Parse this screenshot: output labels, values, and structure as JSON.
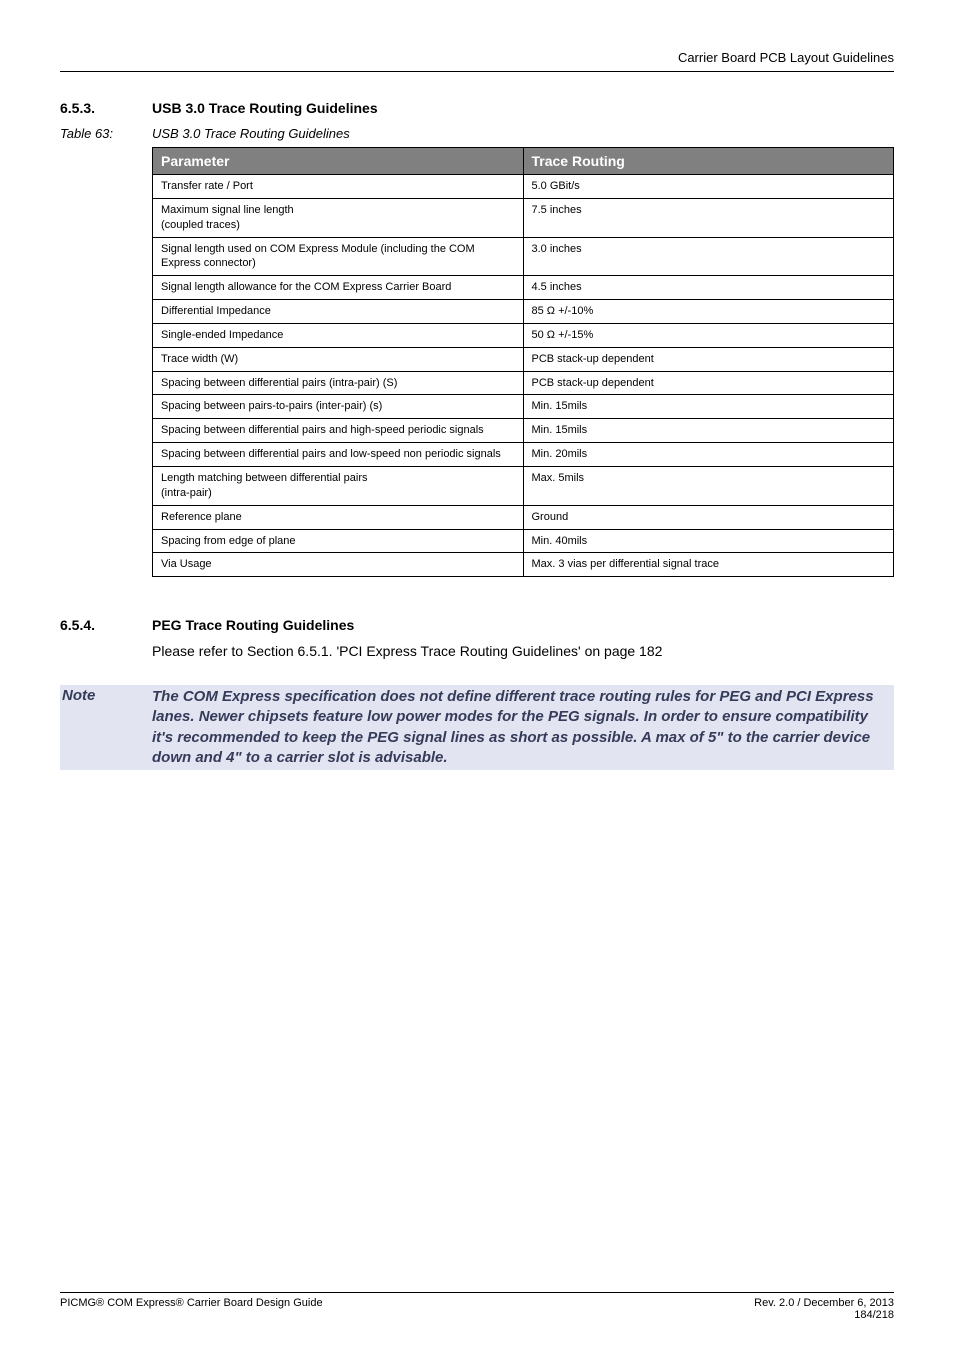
{
  "header": {
    "right": "Carrier Board PCB Layout Guidelines"
  },
  "section653": {
    "num": "6.5.3.",
    "title": "USB 3.0 Trace Routing Guidelines"
  },
  "table63": {
    "label": "Table 63:",
    "caption": "USB 3.0 Trace Routing Guidelines",
    "head": {
      "c1": "Parameter",
      "c2": "Trace Routing"
    },
    "rows": [
      {
        "c1": "Transfer rate / Port",
        "c2": "5.0 GBit/s"
      },
      {
        "c1": "Maximum signal line length\n(coupled traces)",
        "c2": "7.5 inches"
      },
      {
        "c1": "Signal length used on COM Express Module (including the COM Express connector)",
        "c2": "3.0 inches"
      },
      {
        "c1": "Signal length allowance for the COM Express Carrier Board",
        "c2": "4.5 inches"
      },
      {
        "c1": "Differential Impedance",
        "c2": "85 Ω +/-10%"
      },
      {
        "c1": "Single-ended Impedance",
        "c2": "50 Ω +/-15%"
      },
      {
        "c1": "Trace width (W)",
        "c2": "PCB stack-up dependent"
      },
      {
        "c1": "Spacing between differential pairs (intra-pair) (S)",
        "c2": "PCB stack-up dependent"
      },
      {
        "c1": "Spacing between pairs-to-pairs (inter-pair) (s)",
        "c2": "Min. 15mils"
      },
      {
        "c1": "Spacing between differential pairs and high-speed periodic signals",
        "c2": "Min. 15mils"
      },
      {
        "c1": "Spacing between differential pairs and low-speed non periodic signals",
        "c2": "Min. 20mils"
      },
      {
        "c1": "Length matching between differential pairs\n(intra-pair)",
        "c2": "Max. 5mils"
      },
      {
        "c1": "Reference plane",
        "c2": "Ground"
      },
      {
        "c1": "Spacing from edge of plane",
        "c2": "Min. 40mils"
      },
      {
        "c1": "Via Usage",
        "c2": "Max. 3 vias per differential signal trace"
      }
    ]
  },
  "section654": {
    "num": "6.5.4.",
    "title": "PEG Trace Routing Guidelines"
  },
  "body654": "Please refer to Section 6.5.1.  'PCI Express Trace Routing Guidelines' on page 182",
  "note": {
    "label": "Note",
    "body": "The COM Express specification does not define different trace routing rules for PEG and PCI Express lanes.  Newer chipsets feature low power modes for the PEG signals.  In order to ensure compatibility it's recommended to keep the PEG signal lines as short as possible.  A max of 5\" to the carrier device down and 4\" to a carrier slot is advisable."
  },
  "footer": {
    "left": "PICMG® COM Express® Carrier Board Design Guide",
    "right1": "Rev. 2.0 / December 6, 2013",
    "right2": "184/218"
  }
}
